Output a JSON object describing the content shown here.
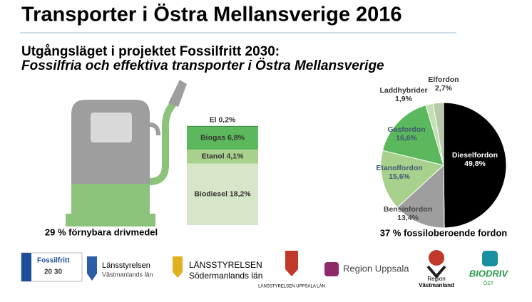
{
  "title": "Transporter i Östra Mellansverige 2016",
  "subtitle": "Utgångsläget i projektet Fossilfritt 2030:",
  "subtitle2": "Fossilfria och effektiva transporter i Östra Mellansverige",
  "chart_data": [
    {
      "type": "stacked-bar",
      "caption": "29 % förnybara drivmedel",
      "series": [
        {
          "color": "#2e7d32",
          "values": [
            0.2
          ],
          "value_labels": [
            "El 0,2%"
          ]
        },
        {
          "color": "#5cb85c",
          "values": [
            6.8
          ],
          "value_labels": [
            "Biogas 6,8%"
          ]
        },
        {
          "color": "#a9d18e",
          "values": [
            4.1
          ],
          "value_labels": [
            "Etanol 4,1%"
          ]
        },
        {
          "color": "#d6e6c8",
          "values": [
            18.2
          ],
          "value_labels": [
            "Biodiesel 18,2%"
          ]
        }
      ]
    },
    {
      "type": "pie",
      "caption": "37 % fossiloberoende fordon",
      "categories": [
        "Dieselfordon",
        "Bensinfordon",
        "Etanolfordon",
        "Gasfordon",
        "Laddhybrider",
        "Elfordon"
      ],
      "values": [
        49.8,
        13.4,
        15.6,
        16.6,
        1.9,
        2.7
      ],
      "value_labels": [
        "49,8%",
        "13,4%",
        "15,6%",
        "16,6%",
        "1,9%",
        "2,7%"
      ],
      "colors": [
        "#000000",
        "#9e9e9e",
        "#a9d18e",
        "#5cb85c",
        "#c5dfb4",
        "#b7c9a8"
      ]
    }
  ],
  "logos": [
    "Fossilfritt",
    "20 30",
    "Länsstyrelsen",
    "Västmanlands län",
    "LÄNSSTYRELSEN",
    "Södermanlands län",
    "LÄNSSTYRELSEN UPPSALA LÄN",
    "Region Uppsala",
    "Region",
    "Västmanland",
    "BIODRIV",
    "ÖST"
  ]
}
